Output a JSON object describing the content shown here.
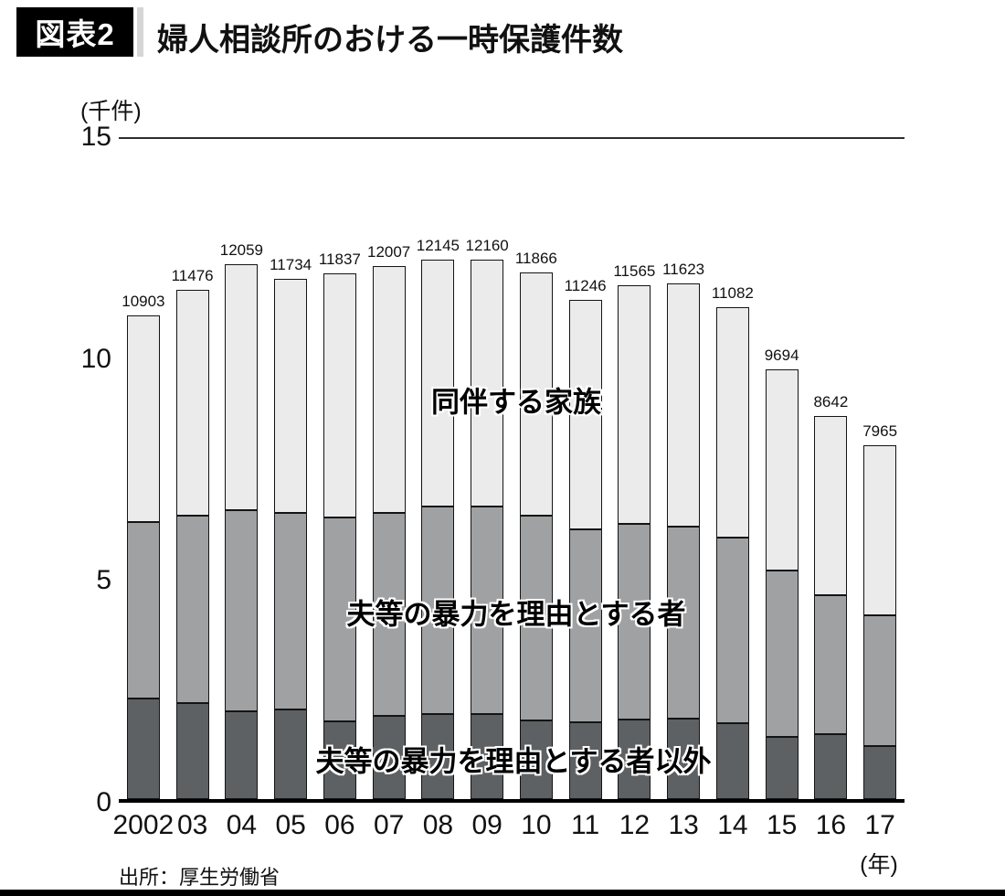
{
  "header": {
    "badge": "図表2",
    "title": "婦人相談所のおける一時保護件数"
  },
  "chart_data": {
    "type": "bar",
    "stacked": true,
    "title": "婦人相談所のおける一時保護件数",
    "y_unit_label": "(千件)",
    "x_unit_label": "(年)",
    "ylim": [
      0,
      15
    ],
    "yticks": [
      0,
      5,
      10,
      15
    ],
    "grid": "top-line-only",
    "legend_position": "labels-inside-plot",
    "categories": [
      "2002",
      "03",
      "04",
      "05",
      "06",
      "07",
      "08",
      "09",
      "10",
      "11",
      "12",
      "13",
      "14",
      "15",
      "16",
      "17"
    ],
    "totals": [
      10903,
      11476,
      12059,
      11734,
      11837,
      12007,
      12145,
      12160,
      11866,
      11246,
      11565,
      11623,
      11082,
      9694,
      8642,
      7965
    ],
    "series": [
      {
        "name": "夫等の暴力を理由とする者以外",
        "color": "#5e6163",
        "values_thousands": [
          2.27,
          2.16,
          1.98,
          2.02,
          1.75,
          1.87,
          1.92,
          1.92,
          1.77,
          1.73,
          1.79,
          1.81,
          1.71,
          1.4,
          1.46,
          1.2
        ]
      },
      {
        "name": "夫等の暴力を理由とする者",
        "color": "#9fa1a3",
        "values_thousands": [
          3.97,
          4.23,
          4.53,
          4.43,
          4.6,
          4.58,
          4.67,
          4.67,
          4.62,
          4.35,
          4.41,
          4.33,
          4.18,
          3.75,
          3.14,
          2.94
        ]
      },
      {
        "name": "同伴する家族",
        "color": "#ebebec",
        "values_thousands": [
          4.66,
          5.09,
          5.55,
          5.28,
          5.49,
          5.56,
          5.56,
          5.57,
          5.48,
          5.17,
          5.37,
          5.48,
          5.19,
          4.54,
          4.04,
          3.83
        ]
      }
    ]
  },
  "source": "出所：厚生労働省"
}
